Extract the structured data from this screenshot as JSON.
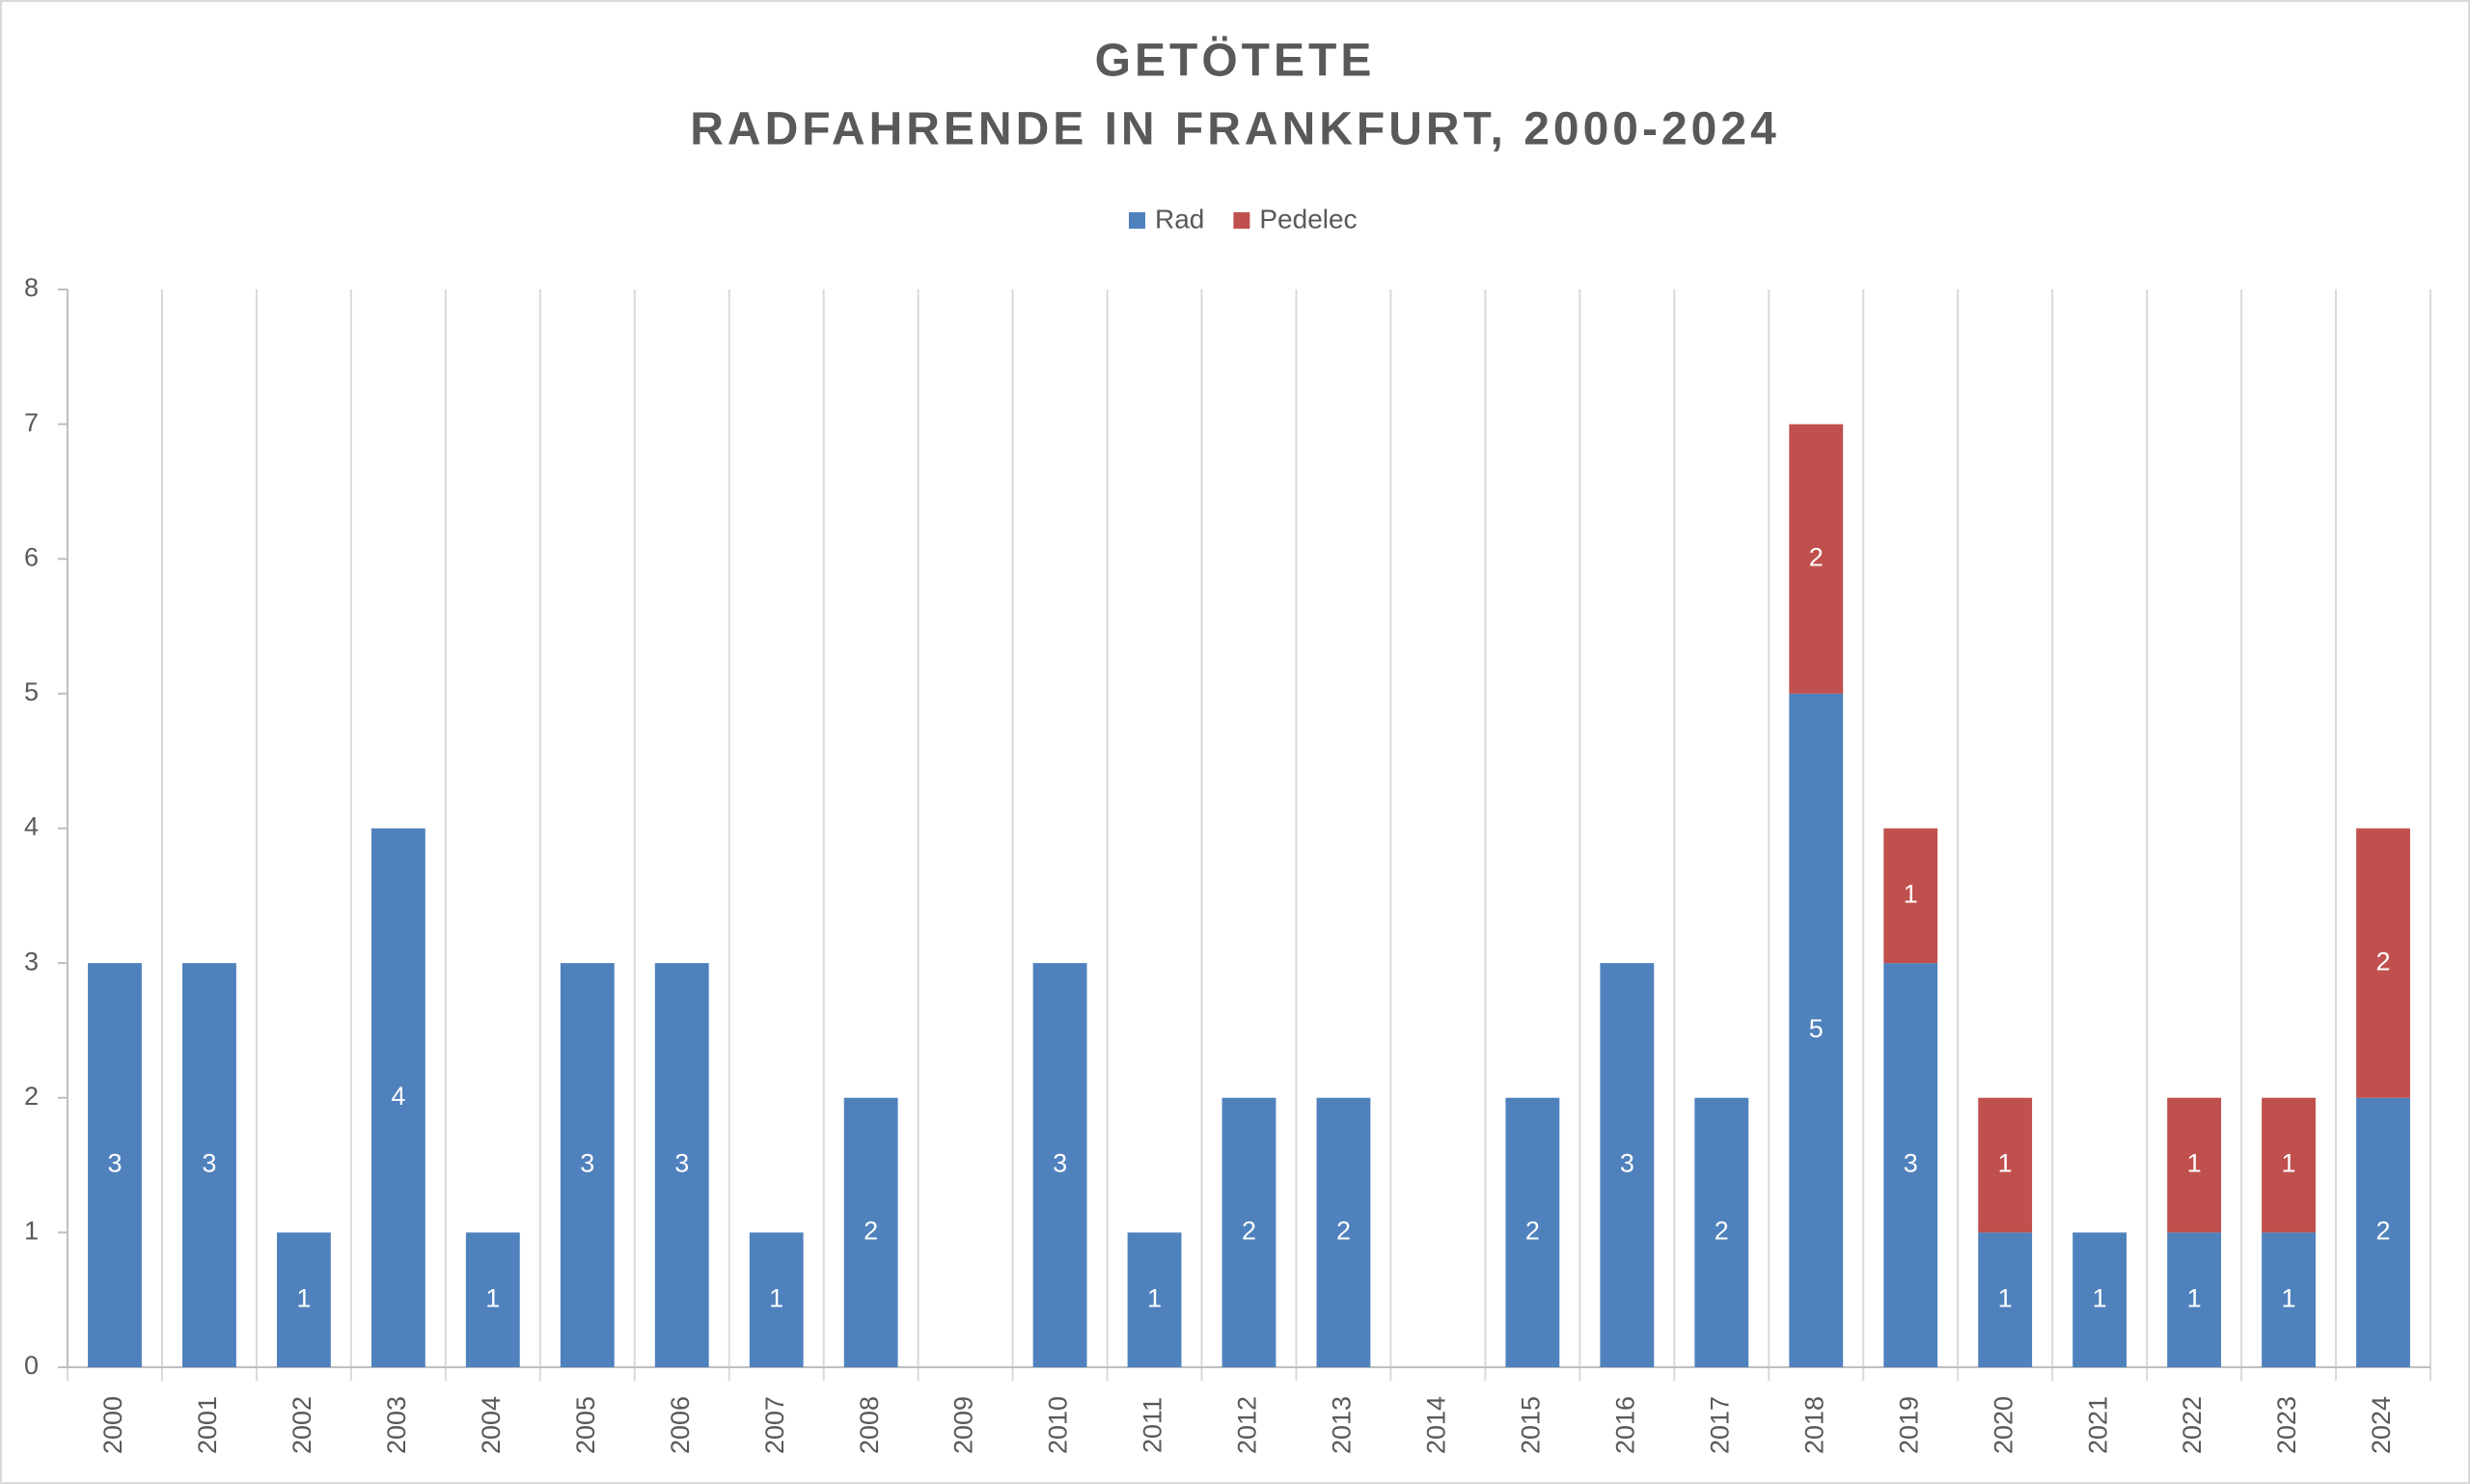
{
  "chart_data": {
    "type": "stacked-bar",
    "title": [
      "GETÖTETE",
      "RADFAHRENDE IN FRANKFURT, 2000-2024"
    ],
    "categories": [
      "2000",
      "2001",
      "2002",
      "2003",
      "2004",
      "2005",
      "2006",
      "2007",
      "2008",
      "2009",
      "2010",
      "2011",
      "2012",
      "2013",
      "2014",
      "2015",
      "2016",
      "2017",
      "2018",
      "2019",
      "2020",
      "2021",
      "2022",
      "2023",
      "2024"
    ],
    "series": [
      {
        "name": "Rad",
        "color": "#4f81bd",
        "values": [
          3,
          3,
          1,
          4,
          1,
          3,
          3,
          1,
          2,
          0,
          3,
          1,
          2,
          2,
          0,
          2,
          3,
          2,
          5,
          3,
          1,
          1,
          1,
          1,
          2
        ]
      },
      {
        "name": "Pedelec",
        "color": "#c0504d",
        "values": [
          null,
          null,
          null,
          null,
          null,
          null,
          null,
          null,
          null,
          null,
          null,
          null,
          null,
          null,
          null,
          null,
          null,
          null,
          2,
          1,
          1,
          null,
          1,
          1,
          2
        ]
      }
    ],
    "ylim": [
      0,
      8
    ],
    "yticks": [
      0,
      1,
      2,
      3,
      4,
      5,
      6,
      7,
      8
    ],
    "legend": "top"
  }
}
